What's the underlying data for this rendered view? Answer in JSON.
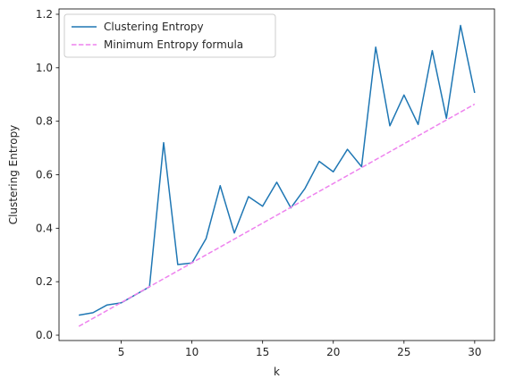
{
  "chart_data": {
    "type": "line",
    "xlabel": "k",
    "ylabel": "Clustering Entropy",
    "xlim": [
      0.6,
      31.4
    ],
    "ylim": [
      -0.02,
      1.22
    ],
    "xticks": [
      5,
      10,
      15,
      20,
      25,
      30
    ],
    "yticks": [
      0.0,
      0.2,
      0.4,
      0.6,
      0.8,
      1.0,
      1.2
    ],
    "legend": "upper-left",
    "grid": false,
    "series": [
      {
        "name": "Clustering Entropy",
        "color": "#1f77b4",
        "style": "solid",
        "x": [
          2,
          3,
          4,
          5,
          6,
          7,
          8,
          9,
          10,
          11,
          12,
          13,
          14,
          15,
          16,
          17,
          18,
          19,
          20,
          21,
          22,
          23,
          24,
          25,
          26,
          27,
          28,
          29,
          30
        ],
        "y": [
          0.075,
          0.084,
          0.113,
          0.121,
          0.151,
          0.181,
          0.72,
          0.264,
          0.27,
          0.361,
          0.559,
          0.382,
          0.518,
          0.482,
          0.572,
          0.476,
          0.549,
          0.65,
          0.611,
          0.695,
          0.63,
          1.077,
          0.783,
          0.898,
          0.788,
          1.064,
          0.811,
          1.158,
          0.906
        ]
      },
      {
        "name": "Minimum Entropy formula",
        "color": "#ee82ee",
        "style": "dashed",
        "x": [
          2,
          30
        ],
        "y": [
          0.033,
          0.864
        ]
      }
    ]
  }
}
